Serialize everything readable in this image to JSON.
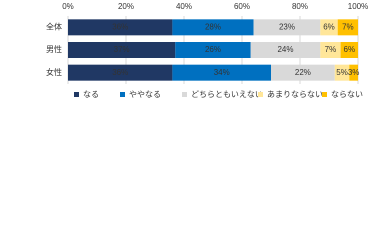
{
  "chart_data": {
    "type": "stacked-bar-horizontal",
    "categories": [
      "全体",
      "男性",
      "女性"
    ],
    "series": [
      {
        "name": "なる",
        "color": "#203864",
        "values": [
          36,
          37,
          36
        ],
        "value_labels": [
          "36%",
          "37%",
          "36%"
        ]
      },
      {
        "name": "ややなる",
        "color": "#0070c0",
        "values": [
          28,
          26,
          34
        ],
        "value_labels": [
          "28%",
          "26%",
          "34%"
        ]
      },
      {
        "name": "どちらともいえない",
        "color": "#d9d9d9",
        "values": [
          23,
          24,
          22
        ],
        "value_labels": [
          "23%",
          "24%",
          "22%"
        ]
      },
      {
        "name": "あまりならない",
        "color": "#ffe699",
        "values": [
          6,
          7,
          5
        ],
        "value_labels": [
          "6%",
          "7%",
          "5%"
        ]
      },
      {
        "name": "ならない",
        "color": "#ffc000",
        "values": [
          7,
          6,
          3
        ],
        "value_labels": [
          "7%",
          "6%",
          "3%"
        ]
      }
    ],
    "xlim": [
      0,
      100
    ],
    "xticks": [
      {
        "value": 0,
        "label": "0%"
      },
      {
        "value": 20,
        "label": "20%"
      },
      {
        "value": 40,
        "label": "40%"
      },
      {
        "value": 60,
        "label": "60%"
      },
      {
        "value": 80,
        "label": "80%"
      },
      {
        "value": 100,
        "label": "100%"
      }
    ],
    "grid": true
  }
}
